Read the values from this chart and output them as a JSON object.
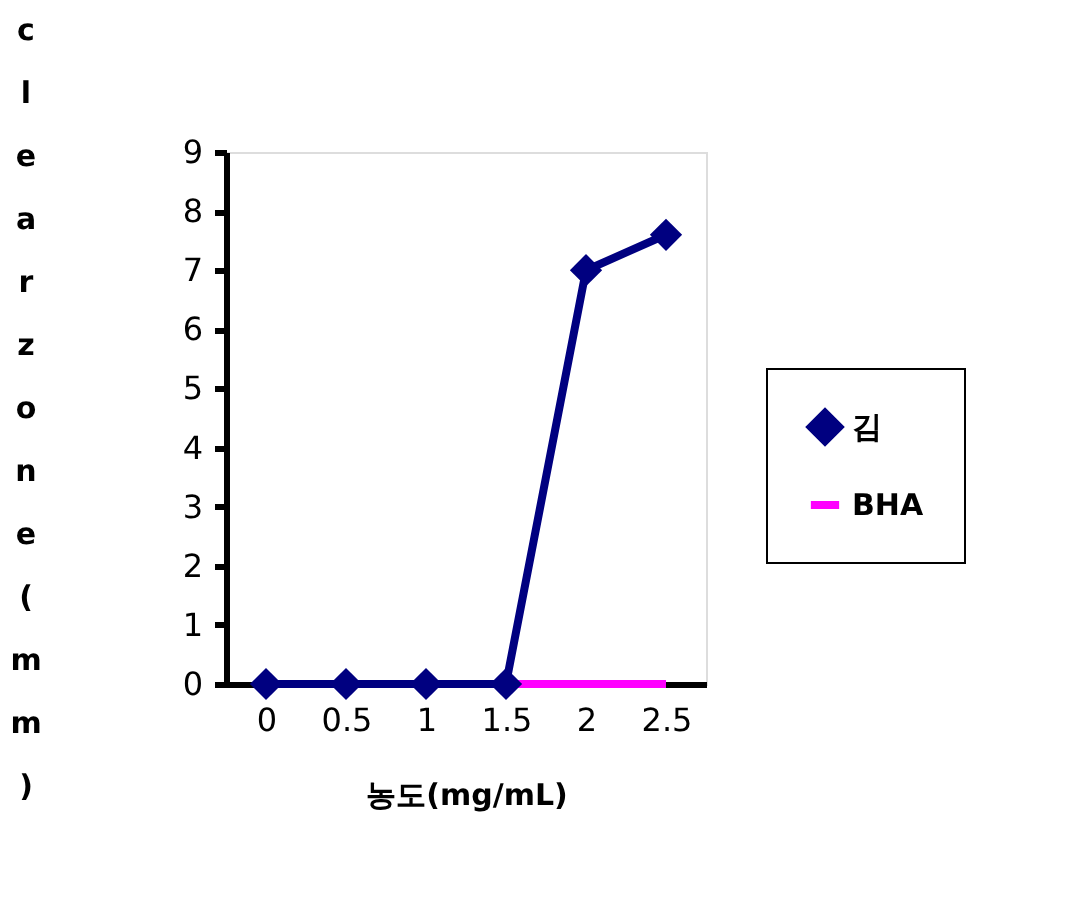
{
  "chart_data": {
    "type": "line",
    "xlabel": "농도(mg/mL)",
    "ylabel": "clear zone(mm)",
    "categories": [
      "0",
      "0.5",
      "1",
      "1.5",
      "2",
      "2.5"
    ],
    "series": [
      {
        "name": "김",
        "color": "#000080",
        "marker": "diamond",
        "values": [
          0,
          0,
          0,
          0,
          7.0,
          7.6
        ]
      },
      {
        "name": "BHA",
        "color": "#ff00ff",
        "marker": "none",
        "values": [
          null,
          null,
          null,
          0,
          0,
          0
        ]
      }
    ],
    "ylim": [
      0,
      9
    ],
    "yticks": [
      0,
      1,
      2,
      3,
      4,
      5,
      6,
      7,
      8,
      9
    ],
    "grid": false,
    "legend": "right"
  }
}
